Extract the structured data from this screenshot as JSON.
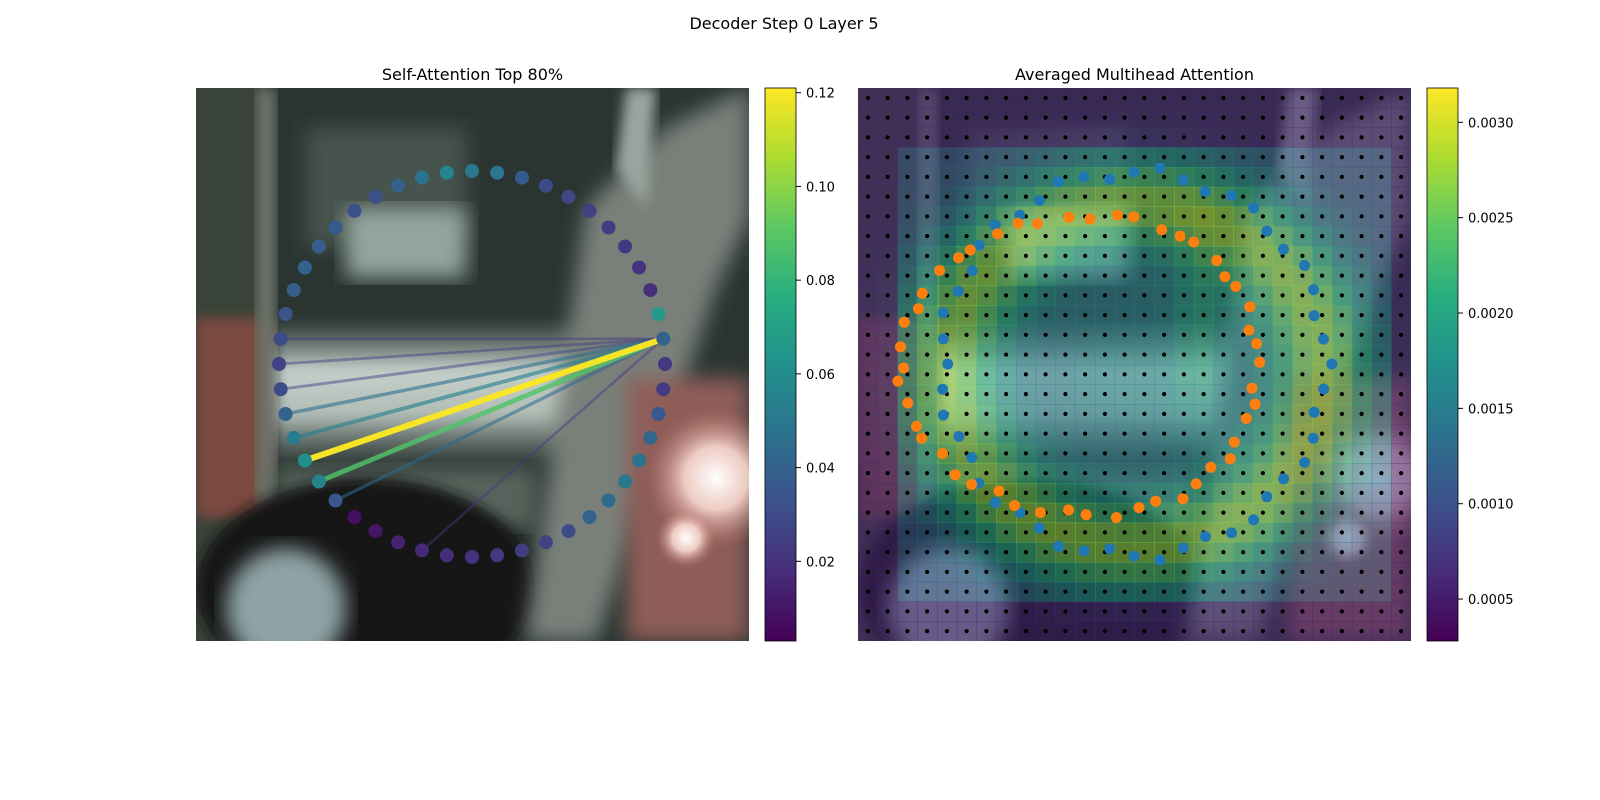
{
  "figure": {
    "suptitle": "Decoder Step 0 Layer 5"
  },
  "chart_data": [
    {
      "type": "scatter",
      "title": "Self-Attention Top 80%",
      "description": "48 contour points on a circle colored by self-attention weight; top-80% attention links drawn as lines from the query point.",
      "n_points": 48,
      "query_point_index": 11,
      "point_weights": [
        0.05,
        0.049,
        0.036,
        0.03,
        0.028,
        0.026,
        0.024,
        0.022,
        0.02,
        0.018,
        0.066,
        0.04,
        0.022,
        0.024,
        0.035,
        0.042,
        0.048,
        0.05,
        0.044,
        0.04,
        0.03,
        0.026,
        0.024,
        0.022,
        0.02,
        0.018,
        0.016,
        0.014,
        0.01,
        0.008,
        0.035,
        0.055,
        0.06,
        0.052,
        0.04,
        0.03,
        0.026,
        0.03,
        0.034,
        0.038,
        0.04,
        0.038,
        0.036,
        0.032,
        0.032,
        0.04,
        0.048,
        0.056
      ],
      "links": [
        {
          "to": 32,
          "weight": 0.12
        },
        {
          "to": 31,
          "weight": 0.088
        },
        {
          "to": 33,
          "weight": 0.056
        },
        {
          "to": 30,
          "weight": 0.042
        },
        {
          "to": 34,
          "weight": 0.046
        },
        {
          "to": 35,
          "weight": 0.03
        },
        {
          "to": 36,
          "weight": 0.024
        },
        {
          "to": 26,
          "weight": 0.022
        },
        {
          "to": 37,
          "weight": 0.021
        }
      ],
      "colorbar": {
        "min": 0.003,
        "max": 0.121,
        "ticks": [
          "0.02",
          "0.04",
          "0.06",
          "0.08",
          "0.10",
          "0.12"
        ],
        "tick_values": [
          0.02,
          0.04,
          0.06,
          0.08,
          0.1,
          0.12
        ],
        "colormap": "viridis"
      }
    },
    {
      "type": "heatmap",
      "title": "Averaged Multihead Attention",
      "grid_size": 28,
      "description": "28x28 averaged attention map overlaid on image, with reference grid points (black), blue contour points and orange predicted points.",
      "colorbar": {
        "min": 0.00028,
        "max": 0.00318,
        "ticks": [
          "0.0005",
          "0.0010",
          "0.0015",
          "0.0020",
          "0.0025",
          "0.0030"
        ],
        "tick_values": [
          0.0005,
          0.001,
          0.0015,
          0.002,
          0.0025,
          0.003
        ],
        "colormap": "viridis"
      },
      "series": [
        {
          "color": "#1f77b4"
        },
        {
          "color": "#ff7f0e"
        },
        {
          "color": "#000000"
        }
      ]
    }
  ]
}
